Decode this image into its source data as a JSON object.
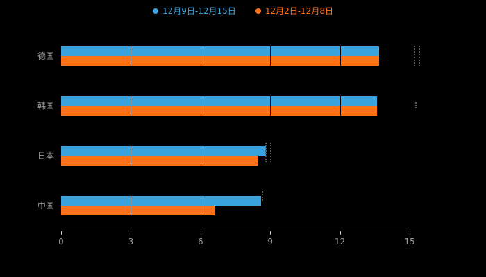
{
  "chart_data": {
    "type": "bar",
    "orientation": "horizontal",
    "title": "",
    "xlabel": "",
    "ylabel": "",
    "categories": [
      "德国",
      "韩国",
      "日本",
      "中国"
    ],
    "series": [
      {
        "name": "12月9日-12月15日",
        "color": "#3AA2DC",
        "values": [
          13.7,
          13.6,
          8.8,
          8.6
        ]
      },
      {
        "name": "12月2日-12月8日",
        "color": "#FF7119",
        "values": [
          13.7,
          13.6,
          8.5,
          6.6
        ]
      }
    ],
    "xlim": [
      0,
      15
    ],
    "x_ticks": [
      "0",
      "3",
      "6",
      "9",
      "12",
      "15"
    ],
    "grid": true,
    "legend_position": "top",
    "background_color": "#000000",
    "axis_color": "#cfcfcf",
    "label_color": "#9a9a9a"
  }
}
